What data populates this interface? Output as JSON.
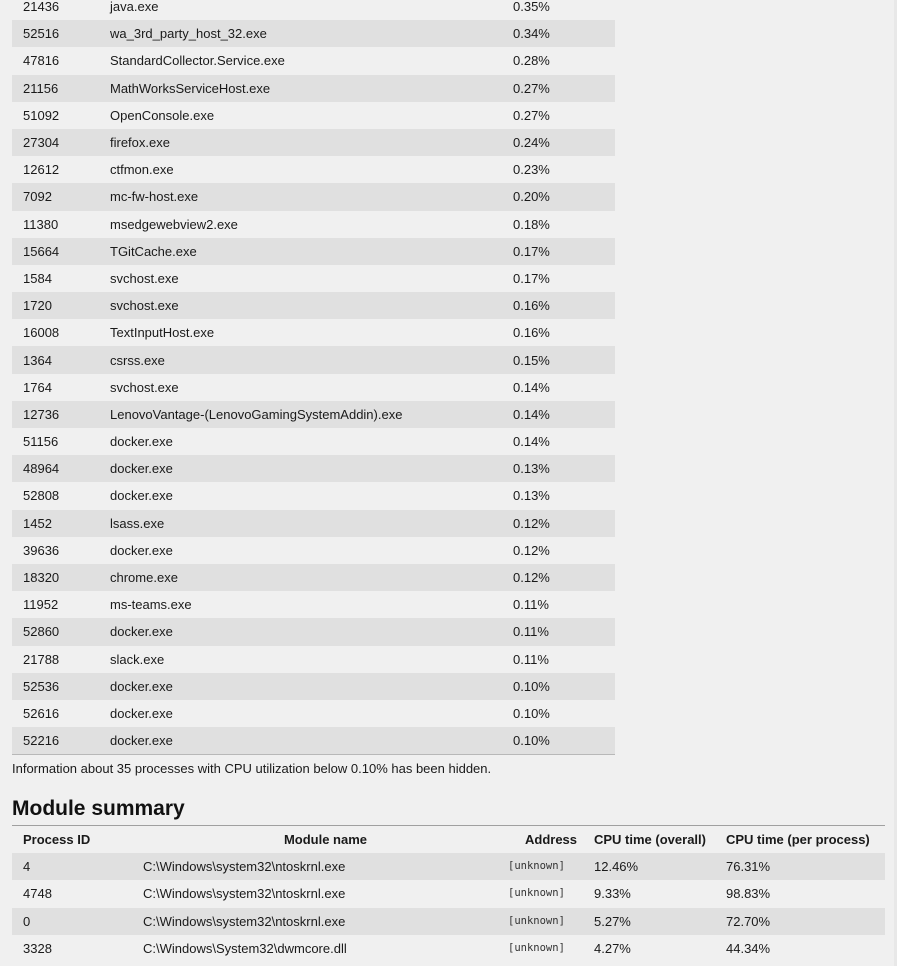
{
  "process_rows": [
    {
      "pid": "21436",
      "name": "java.exe",
      "cpu": "0.35%"
    },
    {
      "pid": "52516",
      "name": "wa_3rd_party_host_32.exe",
      "cpu": "0.34%"
    },
    {
      "pid": "47816",
      "name": "StandardCollector.Service.exe",
      "cpu": "0.28%"
    },
    {
      "pid": "21156",
      "name": "MathWorksServiceHost.exe",
      "cpu": "0.27%"
    },
    {
      "pid": "51092",
      "name": "OpenConsole.exe",
      "cpu": "0.27%"
    },
    {
      "pid": "27304",
      "name": "firefox.exe",
      "cpu": "0.24%"
    },
    {
      "pid": "12612",
      "name": "ctfmon.exe",
      "cpu": "0.23%"
    },
    {
      "pid": "7092",
      "name": "mc-fw-host.exe",
      "cpu": "0.20%"
    },
    {
      "pid": "11380",
      "name": "msedgewebview2.exe",
      "cpu": "0.18%"
    },
    {
      "pid": "15664",
      "name": "TGitCache.exe",
      "cpu": "0.17%"
    },
    {
      "pid": "1584",
      "name": "svchost.exe",
      "cpu": "0.17%"
    },
    {
      "pid": "1720",
      "name": "svchost.exe",
      "cpu": "0.16%"
    },
    {
      "pid": "16008",
      "name": "TextInputHost.exe",
      "cpu": "0.16%"
    },
    {
      "pid": "1364",
      "name": "csrss.exe",
      "cpu": "0.15%"
    },
    {
      "pid": "1764",
      "name": "svchost.exe",
      "cpu": "0.14%"
    },
    {
      "pid": "12736",
      "name": "LenovoVantage-(LenovoGamingSystemAddin).exe",
      "cpu": "0.14%"
    },
    {
      "pid": "51156",
      "name": "docker.exe",
      "cpu": "0.14%"
    },
    {
      "pid": "48964",
      "name": "docker.exe",
      "cpu": "0.13%"
    },
    {
      "pid": "52808",
      "name": "docker.exe",
      "cpu": "0.13%"
    },
    {
      "pid": "1452",
      "name": "lsass.exe",
      "cpu": "0.12%"
    },
    {
      "pid": "39636",
      "name": "docker.exe",
      "cpu": "0.12%"
    },
    {
      "pid": "18320",
      "name": "chrome.exe",
      "cpu": "0.12%"
    },
    {
      "pid": "11952",
      "name": "ms-teams.exe",
      "cpu": "0.11%"
    },
    {
      "pid": "52860",
      "name": "docker.exe",
      "cpu": "0.11%"
    },
    {
      "pid": "21788",
      "name": "slack.exe",
      "cpu": "0.11%"
    },
    {
      "pid": "52536",
      "name": "docker.exe",
      "cpu": "0.10%"
    },
    {
      "pid": "52616",
      "name": "docker.exe",
      "cpu": "0.10%"
    },
    {
      "pid": "52216",
      "name": "docker.exe",
      "cpu": "0.10%"
    }
  ],
  "hidden_note": "Information about 35 processes with CPU utilization below 0.10% has been hidden.",
  "module_summary": {
    "title": "Module summary",
    "headers": {
      "pid": "Process ID",
      "module": "Module name",
      "address": "Address",
      "cpu_overall": "CPU time (overall)",
      "cpu_per_process": "CPU time (per process)"
    },
    "rows": [
      {
        "pid": "4",
        "module": "C:\\Windows\\system32\\ntoskrnl.exe",
        "address": "[unknown]",
        "cpu_overall": "12.46%",
        "cpu_per_process": "76.31%"
      },
      {
        "pid": "4748",
        "module": "C:\\Windows\\system32\\ntoskrnl.exe",
        "address": "[unknown]",
        "cpu_overall": "9.33%",
        "cpu_per_process": "98.83%"
      },
      {
        "pid": "0",
        "module": "C:\\Windows\\system32\\ntoskrnl.exe",
        "address": "[unknown]",
        "cpu_overall": "5.27%",
        "cpu_per_process": "72.70%"
      },
      {
        "pid": "3328",
        "module": "C:\\Windows\\System32\\dwmcore.dll",
        "address": "[unknown]",
        "cpu_overall": "4.27%",
        "cpu_per_process": "44.34%"
      }
    ]
  },
  "colors": {
    "background": "#f0f0f0",
    "row_alt": "#e0e0e0",
    "text": "#1a1a1a"
  }
}
